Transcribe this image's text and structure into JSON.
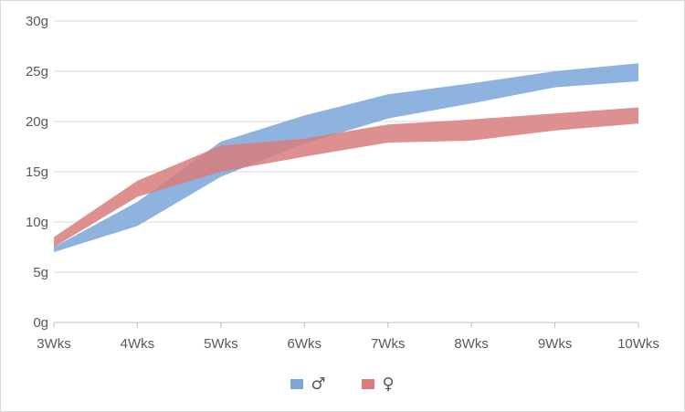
{
  "chart_data": {
    "type": "area",
    "title": "",
    "xlabel": "",
    "ylabel": "",
    "categories": [
      "3Wks",
      "4Wks",
      "5Wks",
      "6Wks",
      "7Wks",
      "8Wks",
      "9Wks",
      "10Wks"
    ],
    "ylim": [
      0,
      30
    ],
    "y_ticks": [
      0,
      5,
      10,
      15,
      20,
      25,
      30
    ],
    "y_tick_labels": [
      "0g",
      "5g",
      "10g",
      "15g",
      "20g",
      "25g",
      "30g"
    ],
    "grid": true,
    "legend_position": "bottom",
    "series": [
      {
        "name": "♂",
        "color": "#7aa6d8",
        "lower": [
          7.0,
          9.6,
          14.5,
          17.8,
          20.3,
          21.8,
          23.4,
          24.0
        ],
        "upper": [
          7.5,
          12.0,
          18.0,
          20.6,
          22.7,
          23.8,
          25.0,
          25.8
        ]
      },
      {
        "name": "♀",
        "color": "#d87c7e",
        "lower": [
          7.5,
          12.5,
          15.0,
          16.5,
          17.9,
          18.1,
          19.1,
          19.8
        ],
        "upper": [
          8.5,
          14.1,
          17.6,
          18.3,
          19.7,
          20.2,
          20.8,
          21.4
        ]
      }
    ]
  }
}
